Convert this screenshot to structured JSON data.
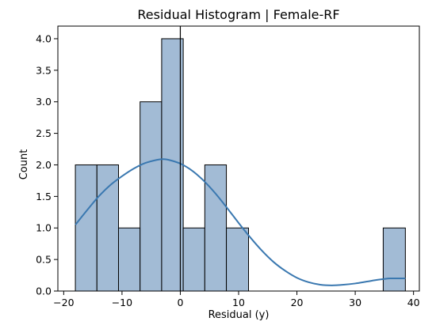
{
  "chart_data": {
    "type": "bar",
    "title": "Residual Histogram | Female-RF",
    "xlabel": "Residual (y)",
    "ylabel": "Count",
    "xlim": [
      -21,
      41
    ],
    "ylim": [
      0,
      4.2
    ],
    "xticks": [
      -20,
      -10,
      0,
      10,
      20,
      30,
      40
    ],
    "xtick_labels": [
      "−20",
      "−10",
      "0",
      "10",
      "20",
      "30",
      "40"
    ],
    "yticks": [
      0.0,
      0.5,
      1.0,
      1.5,
      2.0,
      2.5,
      3.0,
      3.5,
      4.0
    ],
    "ytick_labels": [
      "0.0",
      "0.5",
      "1.0",
      "1.5",
      "2.0",
      "2.5",
      "3.0",
      "3.5",
      "4.0"
    ],
    "bins": [
      {
        "x0": -18.0,
        "x1": -14.3,
        "count": 2
      },
      {
        "x0": -14.3,
        "x1": -10.6,
        "count": 2
      },
      {
        "x0": -10.6,
        "x1": -6.9,
        "count": 1
      },
      {
        "x0": -6.9,
        "x1": -3.2,
        "count": 3
      },
      {
        "x0": -3.2,
        "x1": 0.5,
        "count": 4
      },
      {
        "x0": 0.5,
        "x1": 4.2,
        "count": 1
      },
      {
        "x0": 4.2,
        "x1": 7.9,
        "count": 2
      },
      {
        "x0": 7.9,
        "x1": 11.7,
        "count": 1
      },
      {
        "x0": 34.8,
        "x1": 38.6,
        "count": 1
      }
    ],
    "kde_curve": {
      "x": [
        -18,
        -16,
        -14,
        -12,
        -10,
        -8,
        -6,
        -4,
        -3,
        -2,
        0,
        2,
        4,
        6,
        8,
        10,
        12,
        14,
        16,
        18,
        20,
        22,
        24,
        26,
        28,
        30,
        32,
        34,
        36,
        38.6
      ],
      "y": [
        1.05,
        1.28,
        1.5,
        1.68,
        1.82,
        1.94,
        2.03,
        2.08,
        2.09,
        2.08,
        2.02,
        1.91,
        1.75,
        1.55,
        1.32,
        1.08,
        0.85,
        0.64,
        0.46,
        0.32,
        0.21,
        0.14,
        0.1,
        0.09,
        0.1,
        0.12,
        0.15,
        0.18,
        0.2,
        0.2
      ]
    },
    "vline_x": 0,
    "grid": false,
    "colors": {
      "bar_fill": "#a2bbd5",
      "kde_line": "#3a78b0"
    }
  }
}
